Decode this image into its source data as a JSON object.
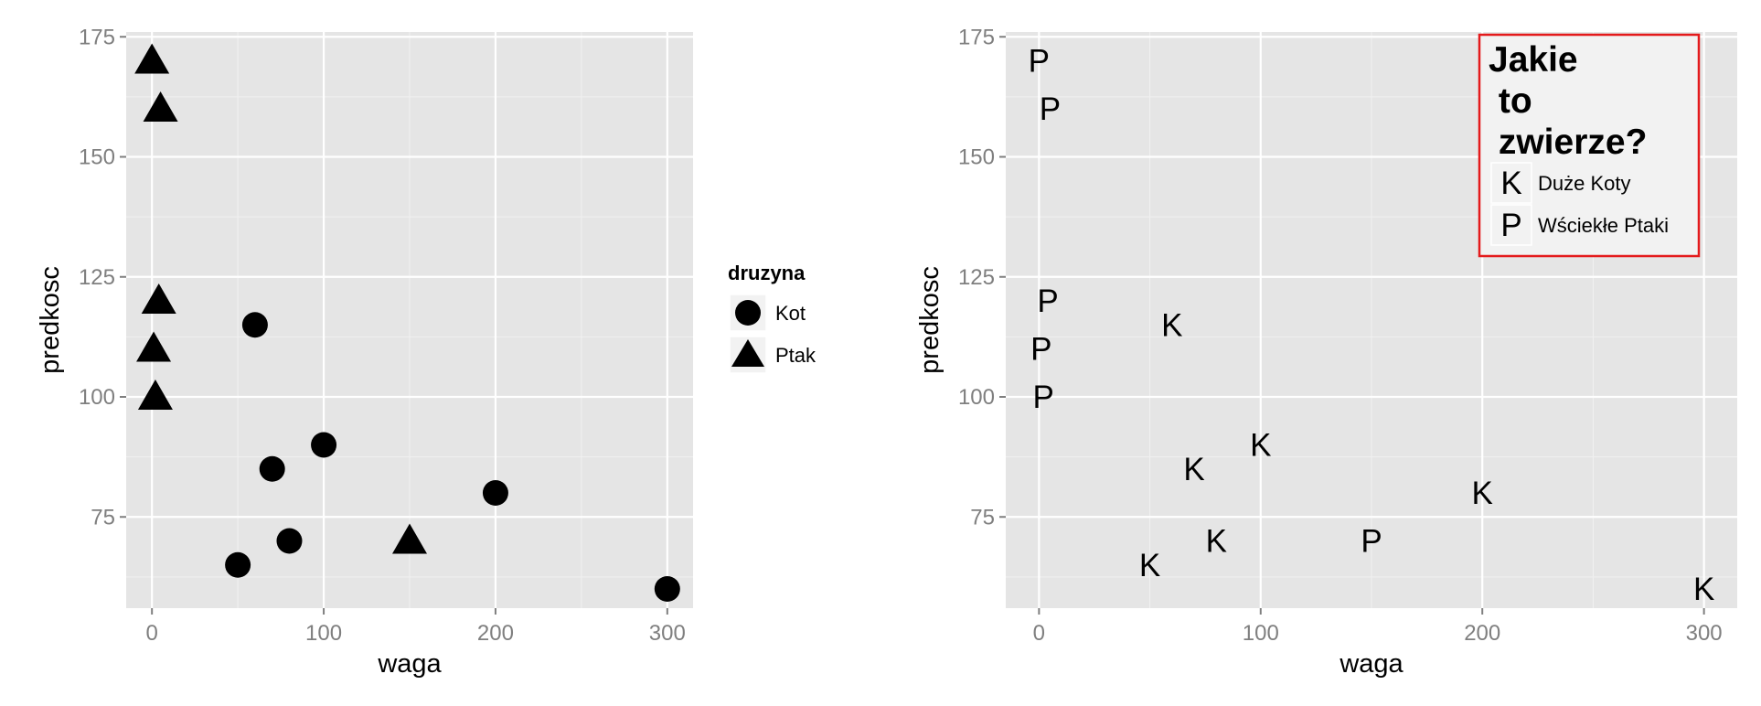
{
  "colors": {
    "panel": "#e5e5e5",
    "grid": "#ffffff",
    "tick": "#7f7f7f",
    "point": "#000000",
    "legend_border": "#e41a1c"
  },
  "chart_data": [
    {
      "type": "scatter",
      "xlabel": "waga",
      "ylabel": "predkosc",
      "xlim": [
        -15,
        315
      ],
      "ylim": [
        56,
        176
      ],
      "xticks": [
        0,
        100,
        200,
        300
      ],
      "xtick_labels": [
        "0",
        "100",
        "200",
        "300"
      ],
      "yticks": [
        75,
        100,
        125,
        150,
        175
      ],
      "ytick_labels": [
        "75",
        "100",
        "125",
        "150",
        "175"
      ],
      "grid": true,
      "legend": {
        "title": "druzyna",
        "position": "right",
        "entries": [
          {
            "label": "Kot",
            "shape": "circle"
          },
          {
            "label": "Ptak",
            "shape": "triangle"
          }
        ]
      },
      "series": [
        {
          "name": "Kot",
          "shape": "circle",
          "points": [
            {
              "x": 60,
              "y": 115
            },
            {
              "x": 70,
              "y": 85
            },
            {
              "x": 100,
              "y": 90
            },
            {
              "x": 80,
              "y": 70
            },
            {
              "x": 50,
              "y": 65
            },
            {
              "x": 200,
              "y": 80
            },
            {
              "x": 300,
              "y": 60
            }
          ]
        },
        {
          "name": "Ptak",
          "shape": "triangle",
          "points": [
            {
              "x": 0,
              "y": 170
            },
            {
              "x": 5,
              "y": 160
            },
            {
              "x": 4,
              "y": 120
            },
            {
              "x": 1,
              "y": 110
            },
            {
              "x": 2,
              "y": 100
            },
            {
              "x": 150,
              "y": 70
            }
          ]
        }
      ]
    },
    {
      "type": "scatter",
      "xlabel": "waga",
      "ylabel": "predkosc",
      "xlim": [
        -15,
        315
      ],
      "ylim": [
        56,
        176
      ],
      "xticks": [
        0,
        100,
        200,
        300
      ],
      "xtick_labels": [
        "0",
        "100",
        "200",
        "300"
      ],
      "yticks": [
        75,
        100,
        125,
        150,
        175
      ],
      "ytick_labels": [
        "75",
        "100",
        "125",
        "150",
        "175"
      ],
      "grid": true,
      "legend": {
        "title_lines": [
          "Jakie",
          " to",
          " zwierze?"
        ],
        "position": "top-right",
        "entries": [
          {
            "label": "Duże Koty",
            "symbol": "K"
          },
          {
            "label": "Wściekłe Ptaki",
            "symbol": "P"
          }
        ]
      },
      "series": [
        {
          "name": "Duże Koty",
          "symbol": "K",
          "points": [
            {
              "x": 60,
              "y": 115
            },
            {
              "x": 70,
              "y": 85
            },
            {
              "x": 100,
              "y": 90
            },
            {
              "x": 80,
              "y": 70
            },
            {
              "x": 50,
              "y": 65
            },
            {
              "x": 200,
              "y": 80
            },
            {
              "x": 300,
              "y": 60
            }
          ]
        },
        {
          "name": "Wściekłe Ptaki",
          "symbol": "P",
          "points": [
            {
              "x": 0,
              "y": 170
            },
            {
              "x": 5,
              "y": 160
            },
            {
              "x": 4,
              "y": 120
            },
            {
              "x": 1,
              "y": 110
            },
            {
              "x": 2,
              "y": 100
            },
            {
              "x": 150,
              "y": 70
            }
          ]
        }
      ]
    }
  ]
}
